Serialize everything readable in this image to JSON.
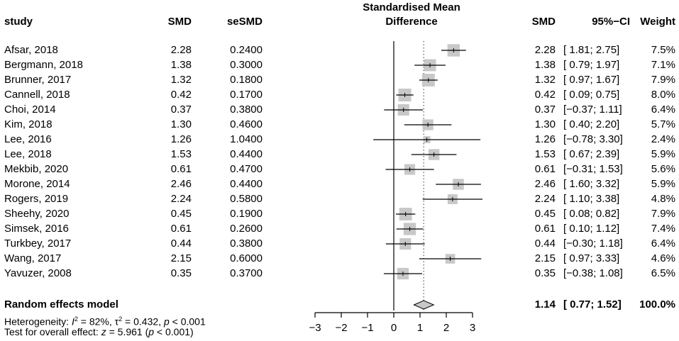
{
  "headers": {
    "study": "study",
    "smd": "SMD",
    "sesmd": "seSMD",
    "plot_title_line1": "Standardised Mean",
    "plot_title_line2": "Difference",
    "smd_right": "SMD",
    "ci": "95%−CI",
    "weight": "Weight"
  },
  "studies": [
    {
      "name": "Afsar, 2018",
      "smd": "2.28",
      "sesmd": "0.2400",
      "ci": "[ 1.81; 2.75]",
      "weight": "7.5%"
    },
    {
      "name": "Bergmann, 2018",
      "smd": "1.38",
      "sesmd": "0.3000",
      "ci": "[ 0.79; 1.97]",
      "weight": "7.1%"
    },
    {
      "name": "Brunner, 2017",
      "smd": "1.32",
      "sesmd": "0.1800",
      "ci": "[ 0.97; 1.67]",
      "weight": "7.9%"
    },
    {
      "name": "Cannell, 2018",
      "smd": "0.42",
      "sesmd": "0.1700",
      "ci": "[ 0.09; 0.75]",
      "weight": "8.0%"
    },
    {
      "name": "Choi, 2014",
      "smd": "0.37",
      "sesmd": "0.3800",
      "ci": "[−0.37; 1.11]",
      "weight": "6.4%"
    },
    {
      "name": "Kim, 2018",
      "smd": "1.30",
      "sesmd": "0.4600",
      "ci": "[ 0.40; 2.20]",
      "weight": "5.7%"
    },
    {
      "name": "Lee, 2016",
      "smd": "1.26",
      "sesmd": "1.0400",
      "ci": "[−0.78; 3.30]",
      "weight": "2.4%"
    },
    {
      "name": "Lee, 2018",
      "smd": "1.53",
      "sesmd": "0.4400",
      "ci": "[ 0.67; 2.39]",
      "weight": "5.9%"
    },
    {
      "name": "Mekbib, 2020",
      "smd": "0.61",
      "sesmd": "0.4700",
      "ci": "[−0.31; 1.53]",
      "weight": "5.6%"
    },
    {
      "name": "Morone, 2014",
      "smd": "2.46",
      "sesmd": "0.4400",
      "ci": "[ 1.60; 3.32]",
      "weight": "5.9%"
    },
    {
      "name": "Rogers, 2019",
      "smd": "2.24",
      "sesmd": "0.5800",
      "ci": "[ 1.10; 3.38]",
      "weight": "4.8%"
    },
    {
      "name": "Sheehy, 2020",
      "smd": "0.45",
      "sesmd": "0.1900",
      "ci": "[ 0.08; 0.82]",
      "weight": "7.9%"
    },
    {
      "name": "Simsek, 2016",
      "smd": "0.61",
      "sesmd": "0.2600",
      "ci": "[ 0.10; 1.12]",
      "weight": "7.4%"
    },
    {
      "name": "Turkbey, 2017",
      "smd": "0.44",
      "sesmd": "0.3800",
      "ci": "[−0.30; 1.18]",
      "weight": "6.4%"
    },
    {
      "name": "Wang, 2017",
      "smd": "2.15",
      "sesmd": "0.6000",
      "ci": "[ 0.97; 3.33]",
      "weight": "4.6%"
    },
    {
      "name": "Yavuzer, 2008",
      "smd": "0.35",
      "sesmd": "0.3700",
      "ci": "[−0.38; 1.08]",
      "weight": "6.5%"
    }
  ],
  "pooled": {
    "label": "Random effects model",
    "smd": "1.14",
    "ci": "[ 0.77; 1.52]",
    "weight": "100.0%"
  },
  "heterogeneity": {
    "prefix": "Heterogeneity: ",
    "i2_symbol": "I",
    "i2_sup": "2",
    "i2_value": " = 82%, ",
    "tau_symbol": "τ",
    "tau_sup": "2",
    "tau_value": " = 0.432, ",
    "p_symbol": "p",
    "p_value": " < 0.001"
  },
  "overall_test": {
    "prefix": "Test for overall effect: ",
    "z_symbol": "z",
    "z_value": " = 5.961 (",
    "p_symbol": "p",
    "p_value": " < 0.001)"
  },
  "colors": {
    "box_fill": "#c8c8c8",
    "line": "#000000",
    "diamond_fill": "#c8c8c8"
  },
  "chart_data": {
    "type": "forest",
    "title": "Standardised Mean Difference",
    "xlim": [
      -3,
      3
    ],
    "ticks": [
      -3,
      -2,
      -1,
      0,
      1,
      2,
      3
    ],
    "tick_labels": [
      "−3",
      "−2",
      "−1",
      "0",
      "1",
      "2",
      "3"
    ],
    "null_line": 0,
    "pooled_line": 1.14,
    "studies": [
      {
        "label": "Afsar, 2018",
        "est": 2.28,
        "lo": 1.81,
        "hi": 2.75,
        "w": 7.5
      },
      {
        "label": "Bergmann, 2018",
        "est": 1.38,
        "lo": 0.79,
        "hi": 1.97,
        "w": 7.1
      },
      {
        "label": "Brunner, 2017",
        "est": 1.32,
        "lo": 0.97,
        "hi": 1.67,
        "w": 7.9
      },
      {
        "label": "Cannell, 2018",
        "est": 0.42,
        "lo": 0.09,
        "hi": 0.75,
        "w": 8.0
      },
      {
        "label": "Choi, 2014",
        "est": 0.37,
        "lo": -0.37,
        "hi": 1.11,
        "w": 6.4
      },
      {
        "label": "Kim, 2018",
        "est": 1.3,
        "lo": 0.4,
        "hi": 2.2,
        "w": 5.7
      },
      {
        "label": "Lee, 2016",
        "est": 1.26,
        "lo": -0.78,
        "hi": 3.3,
        "w": 2.4
      },
      {
        "label": "Lee, 2018",
        "est": 1.53,
        "lo": 0.67,
        "hi": 2.39,
        "w": 5.9
      },
      {
        "label": "Mekbib, 2020",
        "est": 0.61,
        "lo": -0.31,
        "hi": 1.53,
        "w": 5.6
      },
      {
        "label": "Morone, 2014",
        "est": 2.46,
        "lo": 1.6,
        "hi": 3.32,
        "w": 5.9
      },
      {
        "label": "Rogers, 2019",
        "est": 2.24,
        "lo": 1.1,
        "hi": 3.38,
        "w": 4.8
      },
      {
        "label": "Sheehy, 2020",
        "est": 0.45,
        "lo": 0.08,
        "hi": 0.82,
        "w": 7.9
      },
      {
        "label": "Simsek, 2016",
        "est": 0.61,
        "lo": 0.1,
        "hi": 1.12,
        "w": 7.4
      },
      {
        "label": "Turkbey, 2017",
        "est": 0.44,
        "lo": -0.3,
        "hi": 1.18,
        "w": 6.4
      },
      {
        "label": "Wang, 2017",
        "est": 2.15,
        "lo": 0.97,
        "hi": 3.33,
        "w": 4.6
      },
      {
        "label": "Yavuzer, 2008",
        "est": 0.35,
        "lo": -0.38,
        "hi": 1.08,
        "w": 6.5
      }
    ],
    "pooled": {
      "label": "Random effects model",
      "est": 1.14,
      "lo": 0.77,
      "hi": 1.52
    }
  }
}
